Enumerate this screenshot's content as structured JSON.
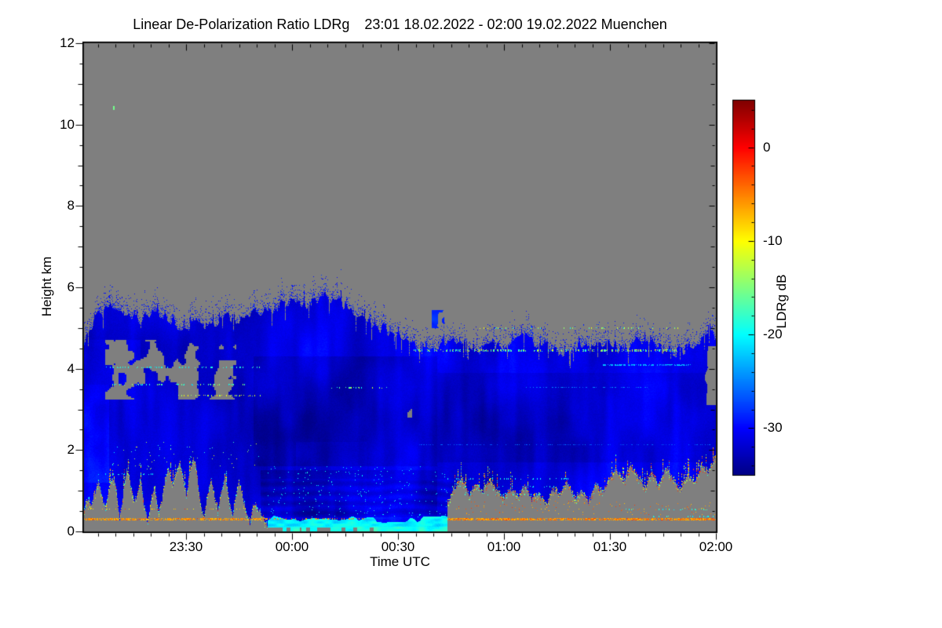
{
  "chart_data": {
    "type": "heatmap",
    "title": "Linear De-Polarization Ratio LDRg   23:01 18.02.2022 - 02:00 19.02.2022 Muenchen",
    "xlabel": "Time UTC",
    "ylabel": "Height km",
    "x_start_time": "23:01",
    "x_end_time": "02:00",
    "x_range_minutes": [
      0,
      179
    ],
    "x_major_ticks": [
      {
        "minute": 29,
        "label": "23:30"
      },
      {
        "minute": 59,
        "label": "00:00"
      },
      {
        "minute": 89,
        "label": "00:30"
      },
      {
        "minute": 119,
        "label": "01:00"
      },
      {
        "minute": 149,
        "label": "01:30"
      },
      {
        "minute": 179,
        "label": "02:00"
      }
    ],
    "x_minor_step_min": 5,
    "x_minor_phase_min": 4,
    "y_range_km": [
      0,
      12
    ],
    "y_major_ticks": [
      {
        "km": 0,
        "label": "0"
      },
      {
        "km": 2,
        "label": "2"
      },
      {
        "km": 4,
        "label": "4"
      },
      {
        "km": 6,
        "label": "6"
      },
      {
        "km": 8,
        "label": "8"
      },
      {
        "km": 10,
        "label": "10"
      },
      {
        "km": 12,
        "label": "12"
      }
    ],
    "y_minor_step_km": 0.5,
    "colorbar": {
      "label": "LDRg dB",
      "min_db": -35,
      "max_db": 5,
      "major_ticks": [
        {
          "db": 0,
          "label": "0"
        },
        {
          "db": -10,
          "label": "-10"
        },
        {
          "db": -20,
          "label": "-20"
        },
        {
          "db": -30,
          "label": "-30"
        }
      ],
      "minor_step_db": 2,
      "colormap": "jet"
    },
    "no_data_color": "#7f7f7f",
    "field_model": {
      "value_base_db": -31.3,
      "texture_amp_db": 2.6,
      "cloud_top_km": [
        [
          0,
          4.65
        ],
        [
          4,
          5.3
        ],
        [
          8,
          5.55
        ],
        [
          12,
          5.35
        ],
        [
          16,
          5.15
        ],
        [
          20,
          5.45
        ],
        [
          24,
          5.25
        ],
        [
          28,
          4.95
        ],
        [
          32,
          5.1
        ],
        [
          36,
          5.05
        ],
        [
          40,
          5.3
        ],
        [
          44,
          5.15
        ],
        [
          48,
          5.35
        ],
        [
          52,
          5.45
        ],
        [
          56,
          5.55
        ],
        [
          60,
          5.7
        ],
        [
          64,
          5.55
        ],
        [
          68,
          5.75
        ],
        [
          72,
          5.65
        ],
        [
          76,
          5.4
        ],
        [
          80,
          5.2
        ],
        [
          84,
          5.0
        ],
        [
          88,
          4.85
        ],
        [
          92,
          4.65
        ],
        [
          96,
          4.5
        ],
        [
          100,
          4.55
        ],
        [
          104,
          4.7
        ],
        [
          108,
          4.55
        ],
        [
          112,
          4.45
        ],
        [
          116,
          4.6
        ],
        [
          120,
          4.5
        ],
        [
          124,
          4.85
        ],
        [
          128,
          4.6
        ],
        [
          132,
          4.5
        ],
        [
          136,
          4.4
        ],
        [
          140,
          4.55
        ],
        [
          144,
          4.45
        ],
        [
          148,
          4.6
        ],
        [
          152,
          4.5
        ],
        [
          156,
          4.65
        ],
        [
          160,
          4.75
        ],
        [
          164,
          4.5
        ],
        [
          168,
          4.4
        ],
        [
          172,
          4.55
        ],
        [
          176,
          4.75
        ],
        [
          179,
          4.85
        ]
      ],
      "mounds": [
        {
          "name": "left-ground-clutter",
          "t": [
            0,
            52
          ],
          "top_km": [
            [
              0,
              0.5
            ],
            [
              1,
              0.85
            ],
            [
              2,
              0.6
            ],
            [
              3,
              0.95
            ],
            [
              4,
              1.2
            ],
            [
              5,
              0.8
            ],
            [
              6,
              0.55
            ],
            [
              7,
              1.0
            ],
            [
              8,
              1.35
            ],
            [
              9,
              1.1
            ],
            [
              10,
              0.25
            ],
            [
              11,
              0.9
            ],
            [
              12,
              1.5
            ],
            [
              13,
              1.2
            ],
            [
              14,
              0.7
            ],
            [
              15,
              0.9
            ],
            [
              16,
              1.3
            ],
            [
              17,
              0.6
            ],
            [
              18,
              0.2
            ],
            [
              19,
              0.8
            ],
            [
              20,
              1.1
            ],
            [
              21,
              0.4
            ],
            [
              22,
              0.75
            ],
            [
              23,
              1.3
            ],
            [
              24,
              1.55
            ],
            [
              25,
              1.1
            ],
            [
              26,
              1.4
            ],
            [
              27,
              1.7
            ],
            [
              28,
              1.3
            ],
            [
              29,
              0.9
            ],
            [
              30,
              1.5
            ],
            [
              31,
              1.8
            ],
            [
              32,
              1.4
            ],
            [
              33,
              0.6
            ],
            [
              34,
              0.3
            ],
            [
              35,
              0.9
            ],
            [
              36,
              1.25
            ],
            [
              37,
              0.8
            ],
            [
              38,
              0.5
            ],
            [
              39,
              1.0
            ],
            [
              40,
              1.4
            ],
            [
              41,
              0.7
            ],
            [
              42,
              0.35
            ],
            [
              43,
              0.9
            ],
            [
              44,
              1.2
            ],
            [
              45,
              0.8
            ],
            [
              46,
              0.45
            ],
            [
              47,
              0.2
            ],
            [
              48,
              0.7
            ],
            [
              50,
              0.45
            ],
            [
              52,
              0.1
            ]
          ],
          "speckle_bias": 0.0
        },
        {
          "name": "right-ground-clutter",
          "t": [
            103,
            179
          ],
          "top_km": [
            [
              103,
              0.7
            ],
            [
              105,
              1.05
            ],
            [
              107,
              1.3
            ],
            [
              109,
              0.9
            ],
            [
              111,
              1.15
            ],
            [
              113,
              0.95
            ],
            [
              115,
              1.25
            ],
            [
              117,
              1.0
            ],
            [
              119,
              0.8
            ],
            [
              121,
              1.05
            ],
            [
              123,
              0.85
            ],
            [
              125,
              1.1
            ],
            [
              127,
              0.75
            ],
            [
              129,
              0.95
            ],
            [
              131,
              0.65
            ],
            [
              133,
              1.05
            ],
            [
              135,
              0.9
            ],
            [
              137,
              1.2
            ],
            [
              139,
              0.8
            ],
            [
              141,
              1.0
            ],
            [
              143,
              0.7
            ],
            [
              145,
              1.15
            ],
            [
              147,
              0.95
            ],
            [
              149,
              1.3
            ],
            [
              151,
              1.5
            ],
            [
              153,
              1.2
            ],
            [
              155,
              1.6
            ],
            [
              157,
              1.35
            ],
            [
              159,
              1.05
            ],
            [
              161,
              1.45
            ],
            [
              163,
              1.1
            ],
            [
              165,
              1.55
            ],
            [
              167,
              1.25
            ],
            [
              169,
              1.0
            ],
            [
              171,
              1.4
            ],
            [
              173,
              1.15
            ],
            [
              175,
              1.6
            ],
            [
              177,
              1.45
            ],
            [
              179,
              1.8
            ]
          ],
          "speckle_bias": 0.15
        }
      ],
      "gray_regions": {
        "upper_intrusion": {
          "t": [
            6,
            43
          ],
          "h": [
            3.25,
            4.7
          ],
          "threshold": 0.52
        },
        "mid_holes": {
          "t": [
            78,
            93
          ],
          "h": [
            2.8,
            3.35
          ],
          "threshold": 0.58
        },
        "right_edge_notch": {
          "t": [
            175.5,
            179
          ],
          "h": [
            3.1,
            4.55
          ]
        }
      },
      "bottom_cyan_band": {
        "t": [
          52,
          103
        ],
        "h_max": 0.3,
        "value_db": -20.5
      },
      "orange_ground_lines": [
        [
          0,
          52,
          0.33,
          3,
          0.85,
          -8,
          -4
        ],
        [
          52,
          80,
          0.33,
          2,
          0.3,
          -8,
          -4
        ],
        [
          103,
          179,
          0.33,
          3,
          0.9,
          -8,
          -3
        ],
        [
          0,
          48,
          0.55,
          1,
          0.2,
          -10,
          -6
        ]
      ],
      "speckle_lines": [
        [
          0,
          20,
          1.42,
          2,
          0.22,
          -22,
          -17
        ],
        [
          6,
          50,
          4.05,
          2,
          0.28,
          -22,
          -16
        ],
        [
          8,
          48,
          3.62,
          2,
          0.28,
          -22,
          -12
        ],
        [
          26,
          50,
          3.35,
          2,
          0.2,
          -16,
          -8
        ],
        [
          70,
          86,
          3.55,
          2,
          0.22,
          -20,
          -10
        ],
        [
          93,
          168,
          4.47,
          3,
          0.4,
          -22,
          -8
        ],
        [
          112,
          170,
          5.02,
          2,
          0.16,
          -20,
          -9
        ],
        [
          103,
          140,
          1.32,
          2,
          0.18,
          -21,
          -17
        ],
        [
          103,
          135,
          1.12,
          2,
          0.14,
          -21,
          -17
        ],
        [
          103,
          130,
          0.92,
          2,
          0.14,
          -21,
          -17
        ],
        [
          150,
          179,
          0.55,
          2,
          0.18,
          -21,
          -17
        ],
        [
          160,
          179,
          0.38,
          2,
          0.22,
          -21,
          -16
        ]
      ],
      "bright_lines": [
        [
          147,
          172,
          4.1,
          2,
          0.75,
          -24.5,
          -21
        ],
        [
          125,
          160,
          3.55,
          1,
          0.5,
          -26.5,
          -24
        ],
        [
          95,
          179,
          2.15,
          1,
          0.35,
          -27.5,
          -25
        ]
      ],
      "dark_patches": [
        [
          48,
          100,
          1.6,
          4.3,
          -1.6
        ],
        [
          100,
          179,
          1.7,
          3.9,
          -1.1
        ],
        [
          50,
          100,
          0.35,
          1.5,
          -1.7
        ]
      ],
      "bright_patches": [
        [
          0,
          7,
          1.2,
          3.6,
          2.2
        ],
        [
          0,
          16,
          3.6,
          4.7,
          1.4
        ],
        [
          60,
          80,
          0.6,
          2.2,
          0.9
        ]
      ],
      "scatter": [
        [
          105,
          179,
          0.4,
          0.75,
          0.02,
          -8,
          -2
        ],
        [
          52,
          103,
          0.35,
          1.6,
          0.015,
          -22,
          -18
        ],
        [
          5,
          50,
          1.5,
          2.2,
          0.01,
          -20,
          -10
        ]
      ],
      "detached_blob": {
        "t": [
          98.5,
          102
        ],
        "h": [
          5.0,
          5.45
        ]
      },
      "isolated_green_dash": {
        "t_min": 8.3,
        "h_km": 10.42,
        "value_db": -15.5
      }
    }
  }
}
